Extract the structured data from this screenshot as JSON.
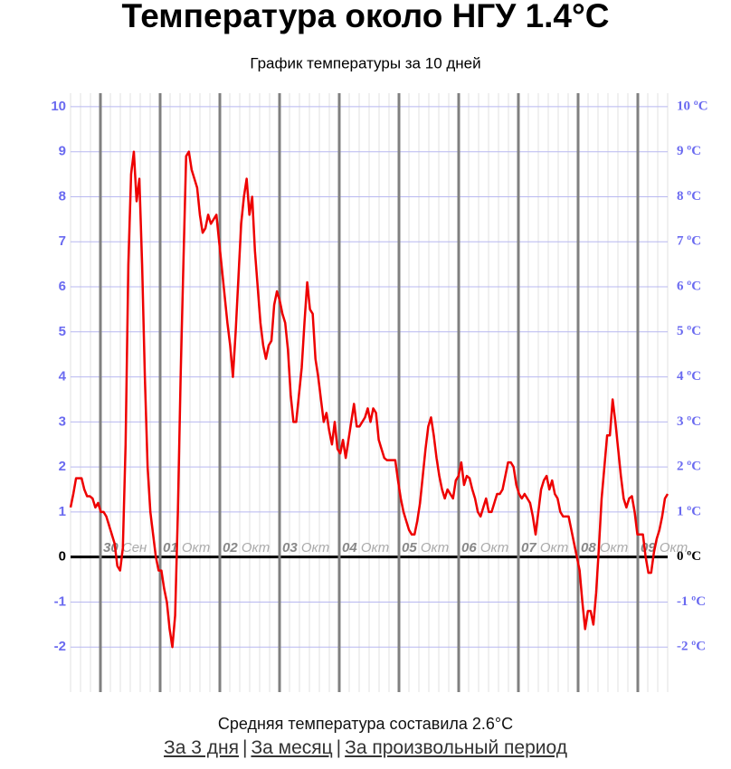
{
  "chart_data": {
    "type": "line",
    "title": "Температура около НГУ 1.4°C",
    "subtitle": "График температуры за 10 дней",
    "series": [
      {
        "name": "Температура",
        "color": "#ee0000",
        "values": [
          1.1,
          1.4,
          1.75,
          1.75,
          1.75,
          1.5,
          1.35,
          1.35,
          1.3,
          1.1,
          1.2,
          1.0,
          1.0,
          0.9,
          0.7,
          0.5,
          0.3,
          -0.2,
          -0.3,
          0.2,
          2.5,
          6.5,
          8.5,
          9.0,
          7.9,
          8.4,
          6.5,
          4.0,
          2.0,
          1.0,
          0.5,
          0.0,
          -0.3,
          -0.3,
          -0.7,
          -1.0,
          -1.6,
          -2.0,
          -1.3,
          1.0,
          4.0,
          6.5,
          8.9,
          9.0,
          8.6,
          8.4,
          8.2,
          7.6,
          7.2,
          7.3,
          7.6,
          7.4,
          7.5,
          7.6,
          7.0,
          6.4,
          5.8,
          5.2,
          4.7,
          4.0,
          5.0,
          6.2,
          7.4,
          8.0,
          8.4,
          7.6,
          8.0,
          6.8,
          6.0,
          5.2,
          4.7,
          4.4,
          4.7,
          4.8,
          5.6,
          5.9,
          5.7,
          5.4,
          5.2,
          4.6,
          3.6,
          3.0,
          3.0,
          3.6,
          4.2,
          5.2,
          6.1,
          5.5,
          5.4,
          4.4,
          4.0,
          3.5,
          3.0,
          3.2,
          2.8,
          2.5,
          3.0,
          2.4,
          2.3,
          2.6,
          2.2,
          2.6,
          3.0,
          3.4,
          2.9,
          2.9,
          3.0,
          3.1,
          3.3,
          3.0,
          3.3,
          3.2,
          2.6,
          2.4,
          2.2,
          2.15,
          2.15,
          2.15,
          2.15,
          1.7,
          1.3,
          1.0,
          0.8,
          0.6,
          0.5,
          0.5,
          0.8,
          1.2,
          1.8,
          2.4,
          2.9,
          3.1,
          2.7,
          2.2,
          1.8,
          1.5,
          1.3,
          1.5,
          1.4,
          1.3,
          1.7,
          1.8,
          2.1,
          1.6,
          1.8,
          1.75,
          1.5,
          1.3,
          1.0,
          0.9,
          1.1,
          1.3,
          1.0,
          1.0,
          1.2,
          1.4,
          1.4,
          1.5,
          1.8,
          2.1,
          2.1,
          2.0,
          1.6,
          1.4,
          1.3,
          1.4,
          1.3,
          1.2,
          0.9,
          0.5,
          1.0,
          1.5,
          1.7,
          1.8,
          1.5,
          1.7,
          1.4,
          1.3,
          1.0,
          0.9,
          0.9,
          0.9,
          0.6,
          0.3,
          0.0,
          -0.3,
          -1.0,
          -1.6,
          -1.2,
          -1.2,
          -1.5,
          -0.8,
          0.2,
          1.3,
          2.0,
          2.7,
          2.7,
          3.5,
          3.0,
          2.4,
          1.8,
          1.3,
          1.1,
          1.3,
          1.35,
          1.0,
          0.5,
          0.5,
          0.5,
          0.0,
          -0.35,
          -0.35,
          0.1,
          0.4,
          0.6,
          0.9,
          1.3,
          1.4
        ]
      }
    ],
    "ylim": [
      -3,
      10.3
    ],
    "yticks": [
      -2,
      -1,
      0,
      1,
      2,
      3,
      4,
      5,
      6,
      7,
      8,
      9,
      10
    ],
    "y2lim": [
      -3,
      10.3
    ],
    "y2ticks": [
      {
        "value": -2,
        "label": "-2 ºC"
      },
      {
        "value": -1,
        "label": "-1 ºC"
      },
      {
        "value": 0,
        "label": "0 ºC"
      },
      {
        "value": 1,
        "label": "1 ºC"
      },
      {
        "value": 2,
        "label": "2 ºC"
      },
      {
        "value": 3,
        "label": "3 ºC"
      },
      {
        "value": 4,
        "label": "4 ºC"
      },
      {
        "value": 5,
        "label": "5 ºC"
      },
      {
        "value": 6,
        "label": "6 ºC"
      },
      {
        "value": 7,
        "label": "7 ºC"
      },
      {
        "value": 8,
        "label": "8 ºC"
      },
      {
        "value": 9,
        "label": "9 ºC"
      },
      {
        "value": 10,
        "label": "10 ºC"
      }
    ],
    "day_labels": [
      {
        "day": "30",
        "month": "Сен"
      },
      {
        "day": "01",
        "month": "Окт"
      },
      {
        "day": "02",
        "month": "Окт"
      },
      {
        "day": "03",
        "month": "Окт"
      },
      {
        "day": "04",
        "month": "Окт"
      },
      {
        "day": "05",
        "month": "Окт"
      },
      {
        "day": "06",
        "month": "Окт"
      },
      {
        "day": "07",
        "month": "Окт"
      },
      {
        "day": "08",
        "month": "Окт"
      },
      {
        "day": "09",
        "month": "Окт"
      }
    ],
    "grid": true
  },
  "footer": {
    "mean_text": "Средняя температура составила 2.6°C",
    "links": [
      "За 3 дня",
      "За месяц",
      "За произвольный период"
    ],
    "separator": "|"
  }
}
